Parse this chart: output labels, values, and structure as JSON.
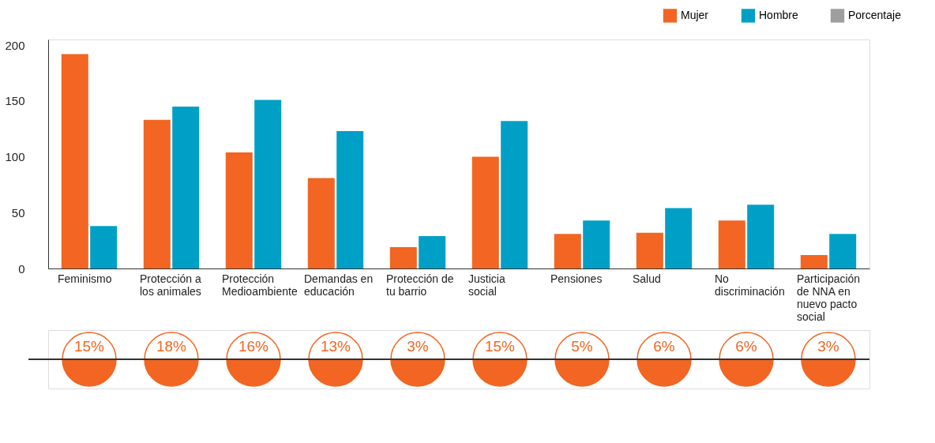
{
  "chart_data": [
    {
      "type": "bar",
      "categories": [
        "Feminismo",
        "Protección a los animales",
        "Protección Medioambiente",
        "Demandas en educación",
        "Protección de tu barrio",
        "Justicia social",
        "Pensiones",
        "Salud",
        "No discriminación",
        "Participación de NNA en nuevo pacto social"
      ],
      "series": [
        {
          "name": "Mujer",
          "color": "#f26522",
          "values": [
            192,
            133,
            104,
            81,
            19,
            100,
            31,
            32,
            43,
            12
          ]
        },
        {
          "name": "Hombre",
          "color": "#00a0c6",
          "values": [
            38,
            145,
            151,
            123,
            29,
            132,
            43,
            54,
            57,
            31
          ]
        }
      ],
      "ylim": [
        0,
        205
      ],
      "yticks": [
        0,
        50,
        100,
        150,
        200
      ],
      "grid": false,
      "legend": "top right"
    },
    {
      "type": "other",
      "categories": [
        null,
        null,
        null,
        null,
        null,
        null,
        null,
        null,
        null,
        null
      ],
      "series": [
        {
          "name": "Porcentaje",
          "color": "#9e9e9e",
          "colors": [
            "#f26522",
            "#f26522",
            "#f26522",
            "#f26522",
            "#f26522",
            "#f26522",
            "#f26522",
            "#f26522",
            "#f26522",
            "#f26522"
          ],
          "values": [
            15,
            18,
            16,
            13,
            3,
            15,
            5,
            6,
            6,
            3
          ],
          "value_labels": [
            "15%",
            "18%",
            "16%",
            "13%",
            "3%",
            "15%",
            "5%",
            "6%",
            "6%",
            "3%"
          ]
        }
      ]
    }
  ]
}
